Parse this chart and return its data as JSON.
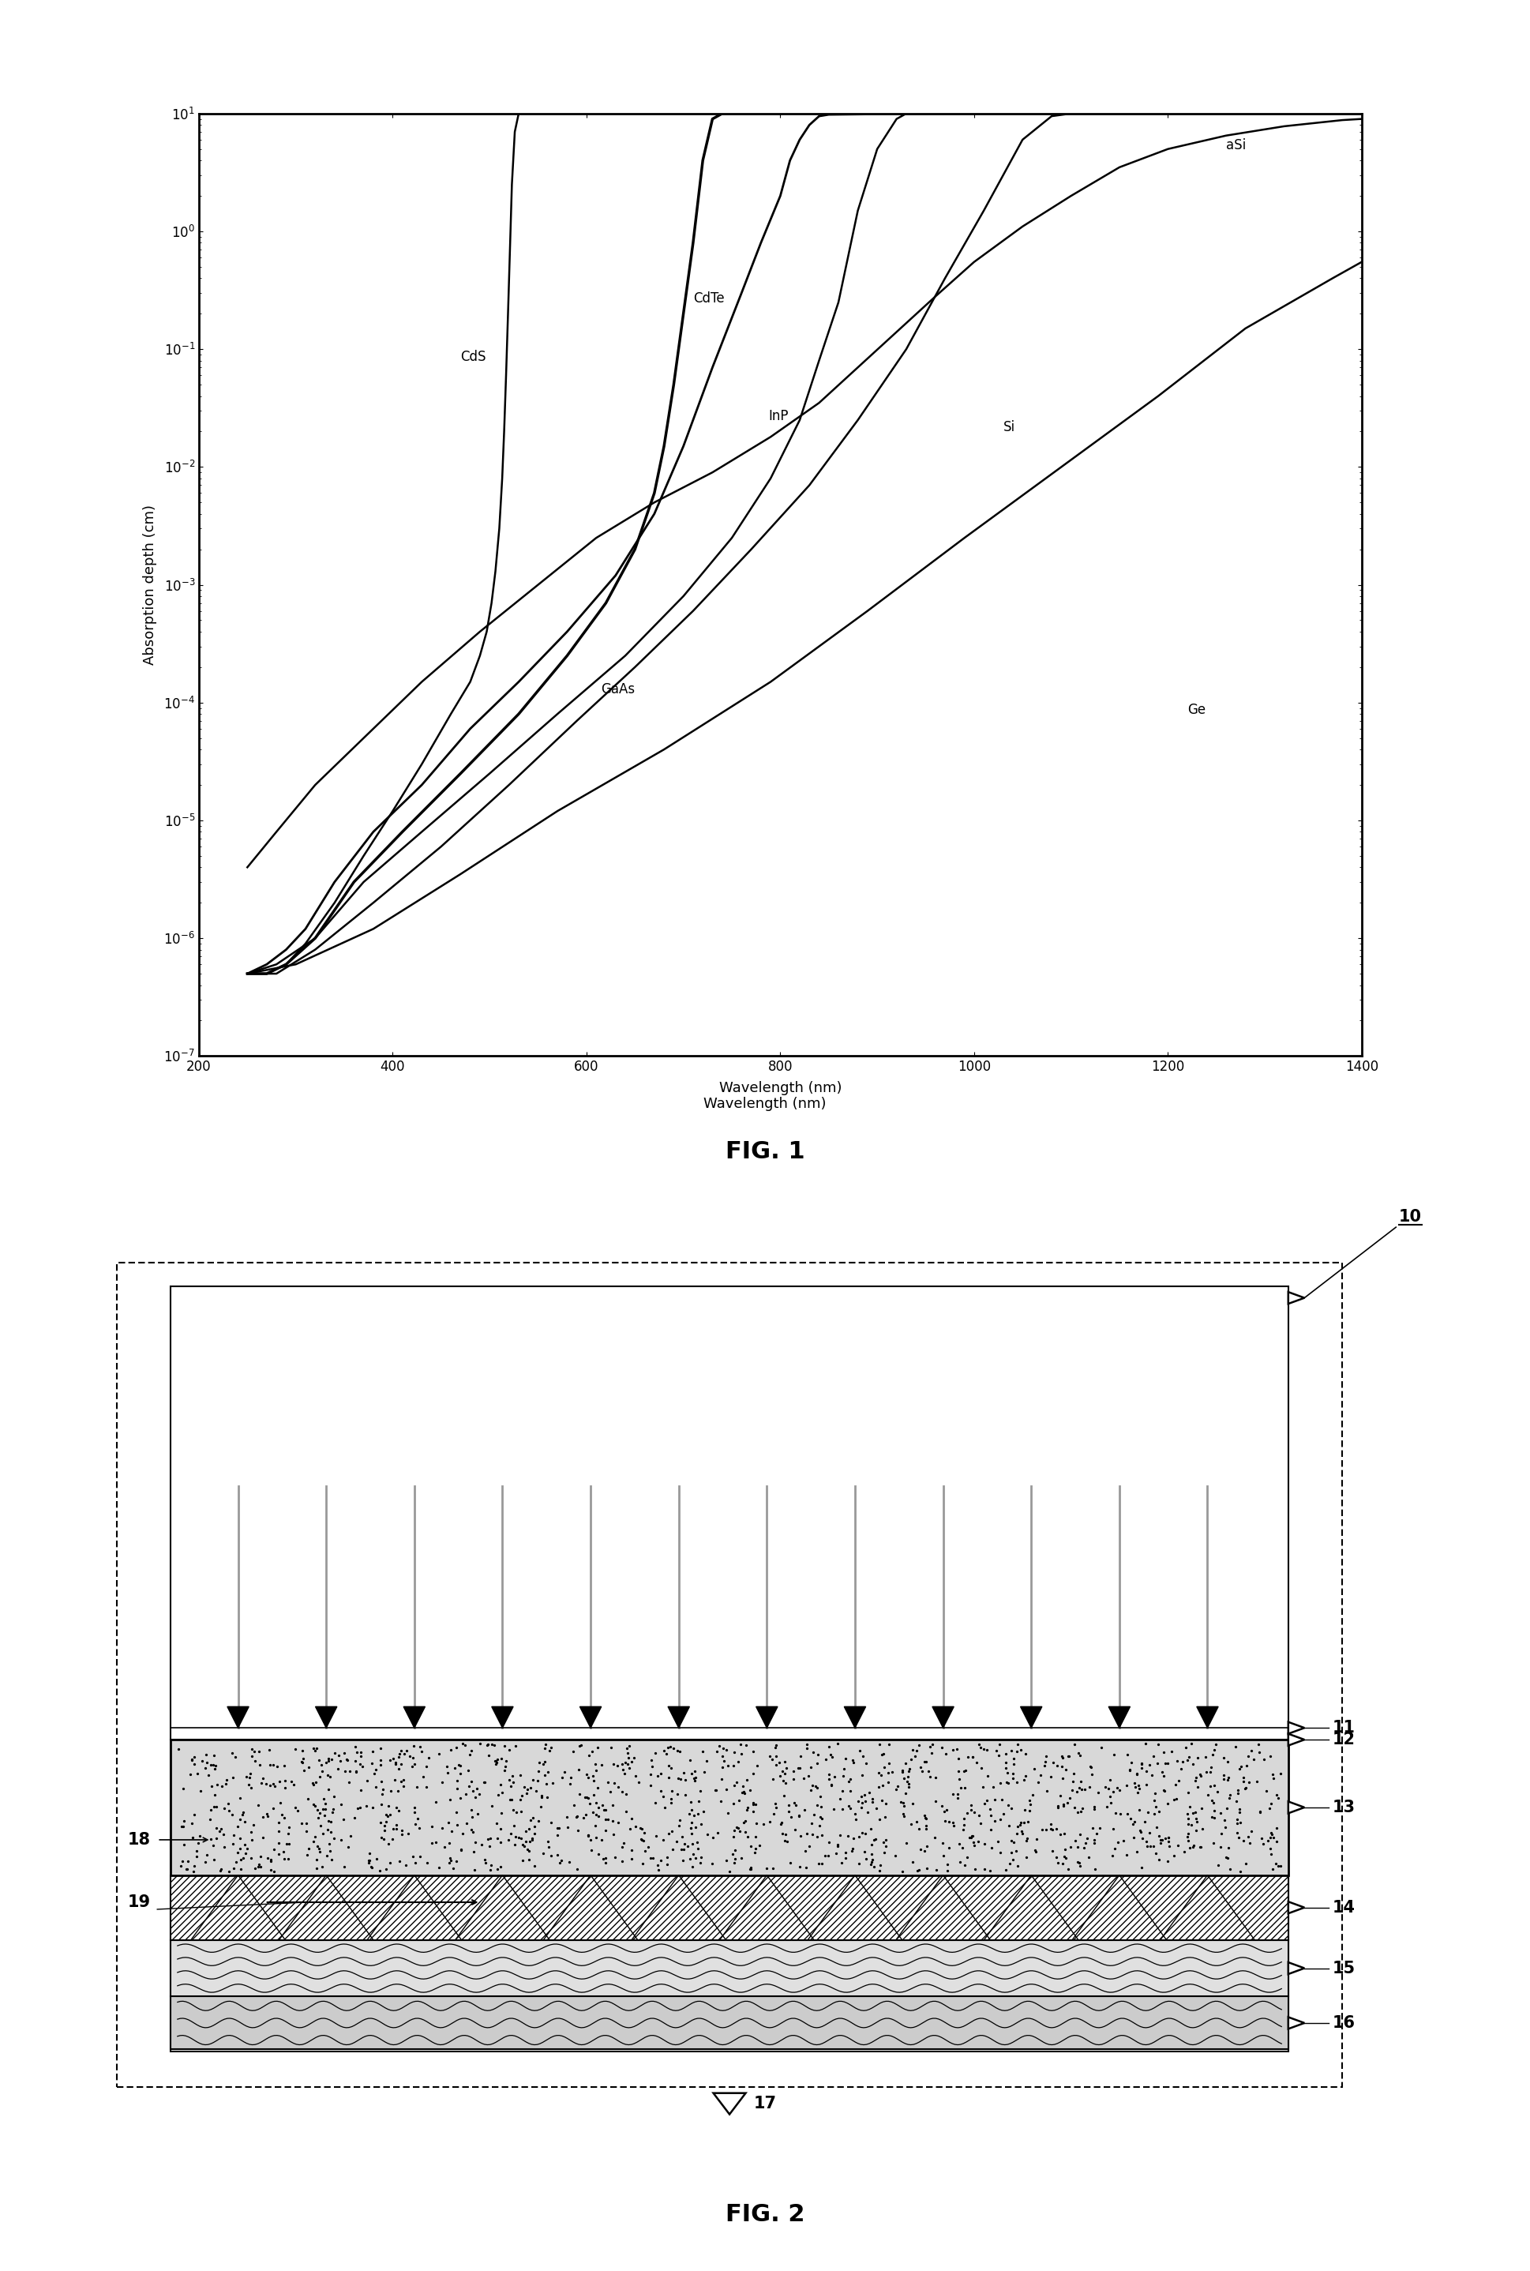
{
  "fig1": {
    "xlabel": "Wavelength (nm)",
    "ylabel": "Absorption depth (cm)",
    "fig_label": "FIG. 1",
    "xlim": [
      200,
      1400
    ],
    "xticks": [
      200,
      400,
      600,
      800,
      1000,
      1200,
      1400
    ],
    "ylim": [
      1e-07,
      10.0
    ],
    "curves": {
      "CdTe": {
        "x": [
          250,
          270,
          290,
          310,
          340,
          380,
          430,
          480,
          530,
          580,
          630,
          670,
          700,
          730,
          760,
          780,
          800,
          810,
          820,
          830,
          840,
          850,
          900,
          1000,
          1100,
          1200,
          1300,
          1400
        ],
        "y": [
          5e-07,
          6e-07,
          8e-07,
          1.2e-06,
          3e-06,
          8e-06,
          2e-05,
          6e-05,
          0.00015,
          0.0004,
          0.0012,
          0.004,
          0.015,
          0.07,
          0.3,
          0.8,
          2.0,
          4.0,
          6.0,
          8.0,
          9.5,
          9.8,
          9.9,
          10.0,
          10.0,
          10.0,
          10.0,
          10.0
        ],
        "lw": 2.0,
        "ann_x": 710,
        "ann_y": 0.25,
        "ann": "CdTe"
      },
      "aSi": {
        "x": [
          250,
          280,
          320,
          370,
          430,
          490,
          550,
          610,
          670,
          730,
          790,
          840,
          880,
          920,
          960,
          1000,
          1050,
          1100,
          1150,
          1200,
          1260,
          1320,
          1380,
          1400
        ],
        "y": [
          4e-06,
          8e-06,
          2e-05,
          5e-05,
          0.00015,
          0.0004,
          0.001,
          0.0025,
          0.005,
          0.009,
          0.018,
          0.035,
          0.07,
          0.14,
          0.28,
          0.55,
          1.1,
          2.0,
          3.5,
          5.0,
          6.5,
          7.8,
          8.8,
          9.0
        ],
        "lw": 1.8,
        "ann_x": 1260,
        "ann_y": 5.0,
        "ann": "aSi"
      },
      "CdS": {
        "x": [
          250,
          270,
          290,
          310,
          340,
          370,
          400,
          430,
          460,
          480,
          490,
          497,
          502,
          506,
          510,
          513,
          515,
          517,
          519,
          521,
          523,
          526,
          530,
          540,
          560
        ],
        "y": [
          5e-07,
          5e-07,
          6e-07,
          9e-07,
          2e-06,
          5e-06,
          1.2e-05,
          3e-05,
          8e-05,
          0.00015,
          0.00025,
          0.0004,
          0.0007,
          0.0013,
          0.003,
          0.008,
          0.02,
          0.06,
          0.2,
          0.7,
          2.5,
          7.0,
          10.0,
          10.0,
          10.0
        ],
        "lw": 1.8,
        "ann_x": 470,
        "ann_y": 0.08,
        "ann": "CdS"
      },
      "InP": {
        "x": [
          250,
          280,
          320,
          370,
          430,
          500,
          570,
          640,
          700,
          750,
          790,
          820,
          840,
          860,
          880,
          900,
          920,
          930,
          940
        ],
        "y": [
          5e-07,
          6e-07,
          1e-06,
          3e-06,
          8e-06,
          2.5e-05,
          8e-05,
          0.00025,
          0.0008,
          0.0025,
          0.008,
          0.025,
          0.08,
          0.25,
          1.5,
          5.0,
          9.0,
          10.0,
          10.0
        ],
        "lw": 1.8,
        "ann_x": 788,
        "ann_y": 0.025,
        "ann": "InP"
      },
      "GaAs": {
        "x": [
          250,
          270,
          290,
          320,
          360,
          410,
          470,
          530,
          580,
          620,
          650,
          670,
          680,
          690,
          700,
          710,
          720,
          730,
          740,
          750,
          760,
          780,
          800
        ],
        "y": [
          5e-07,
          5e-07,
          6e-07,
          1e-06,
          3e-06,
          8e-06,
          2.5e-05,
          8e-05,
          0.00025,
          0.0007,
          0.002,
          0.006,
          0.015,
          0.05,
          0.2,
          0.8,
          4.0,
          9.0,
          10.0,
          10.0,
          10.0,
          10.0,
          10.0
        ],
        "lw": 2.5,
        "ann_x": 615,
        "ann_y": 0.00012,
        "ann": "GaAs"
      },
      "Si": {
        "x": [
          250,
          280,
          320,
          380,
          450,
          520,
          590,
          650,
          710,
          770,
          830,
          880,
          930,
          970,
          1010,
          1050,
          1080,
          1100,
          1110,
          1120,
          1130
        ],
        "y": [
          5e-07,
          5e-07,
          8e-07,
          2e-06,
          6e-06,
          2e-05,
          7e-05,
          0.0002,
          0.0006,
          0.002,
          0.007,
          0.025,
          0.1,
          0.4,
          1.5,
          6.0,
          9.5,
          10.0,
          10.0,
          10.0,
          10.0
        ],
        "lw": 1.8,
        "ann_x": 1030,
        "ann_y": 0.02,
        "ann": "Si"
      },
      "Ge": {
        "x": [
          250,
          300,
          380,
          470,
          570,
          680,
          790,
          890,
          990,
          1090,
          1190,
          1280,
          1370,
          1400
        ],
        "y": [
          5e-07,
          6e-07,
          1.2e-06,
          3.5e-06,
          1.2e-05,
          4e-05,
          0.00015,
          0.0006,
          0.0025,
          0.01,
          0.04,
          0.15,
          0.4,
          0.55
        ],
        "lw": 1.8,
        "ann_x": 1220,
        "ann_y": 8e-05,
        "ann": "Ge"
      }
    }
  },
  "fig2": {
    "fig_label": "FIG. 2",
    "num_fibers": 12
  }
}
